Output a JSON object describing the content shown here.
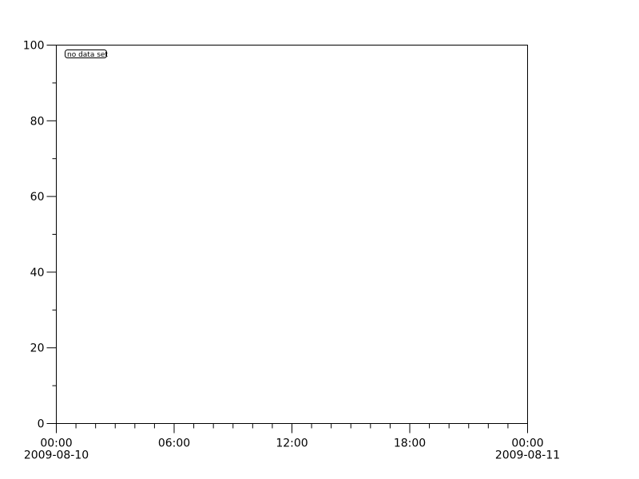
{
  "chart_data": {
    "type": "line",
    "title": "",
    "xlabel": "",
    "ylabel": "",
    "series": [],
    "annotation": "no data set",
    "ylim": [
      0,
      100
    ],
    "y_ticks": [
      "0",
      "20",
      "40",
      "60",
      "80",
      "100"
    ],
    "xlim": [
      "2009-08-10 00:00",
      "2009-08-11 00:00"
    ],
    "x_ticks": [
      {
        "time": "00:00",
        "date": "2009-08-10"
      },
      {
        "time": "06:00",
        "date": ""
      },
      {
        "time": "12:00",
        "date": ""
      },
      {
        "time": "18:00",
        "date": ""
      },
      {
        "time": "00:00",
        "date": "2009-08-11"
      }
    ],
    "grid": false,
    "colors": {
      "axis": "#000000",
      "background": "#ffffff"
    }
  }
}
